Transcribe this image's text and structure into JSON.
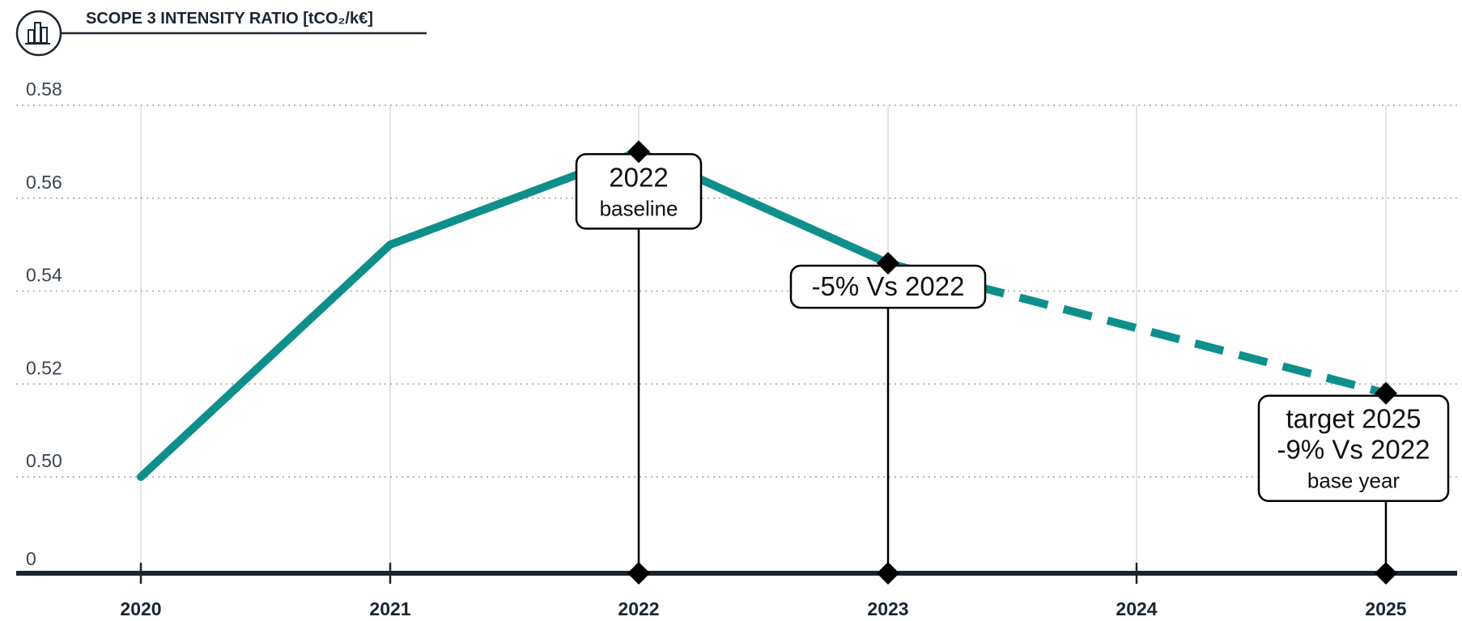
{
  "header": {
    "title": "SCOPE 3 INTENSITY RATIO [tCO₂/k€]",
    "icon": "bar-chart-icon"
  },
  "chart_data": {
    "type": "line",
    "title": "SCOPE 3 INTENSITY RATIO [tCO₂/k€]",
    "xlabel": "",
    "ylabel": "",
    "x": [
      "2020",
      "2021",
      "2022",
      "2023",
      "2024",
      "2025"
    ],
    "y_ticks": [
      "0",
      "0.50",
      "0.52",
      "0.54",
      "0.56",
      "0.58"
    ],
    "y_tick_values": [
      0.48,
      0.5,
      0.52,
      0.54,
      0.56,
      0.58
    ],
    "ylim": [
      0,
      0.58
    ],
    "axis_break": "y-axis broken between 0 and 0.50",
    "grid": "horizontal dotted, vertical solid",
    "series": [
      {
        "style": "solid",
        "color": "#0e8f8c",
        "points": [
          {
            "x": "2020",
            "y": 0.5
          },
          {
            "x": "2021",
            "y": 0.55
          },
          {
            "x": "2022",
            "y": 0.57
          },
          {
            "x": "2023",
            "y": 0.546
          }
        ]
      },
      {
        "style": "dashed",
        "color": "#0e8f8c",
        "points": [
          {
            "x": "2023",
            "y": 0.546
          },
          {
            "x": "2025",
            "y": 0.518
          }
        ]
      }
    ],
    "annotations": [
      {
        "x": "2022",
        "y": 0.57,
        "lines": [
          "2022",
          "baseline"
        ]
      },
      {
        "x": "2023",
        "y": 0.546,
        "lines": [
          "-5% Vs 2022"
        ]
      },
      {
        "x": "2025",
        "y": 0.518,
        "lines": [
          "target 2025",
          "-9% Vs 2022",
          "base year"
        ]
      }
    ]
  },
  "colors": {
    "line": "#0e8f8c",
    "axis": "#1a2530",
    "grid": "#9aa3ab",
    "marker": "#000000"
  }
}
